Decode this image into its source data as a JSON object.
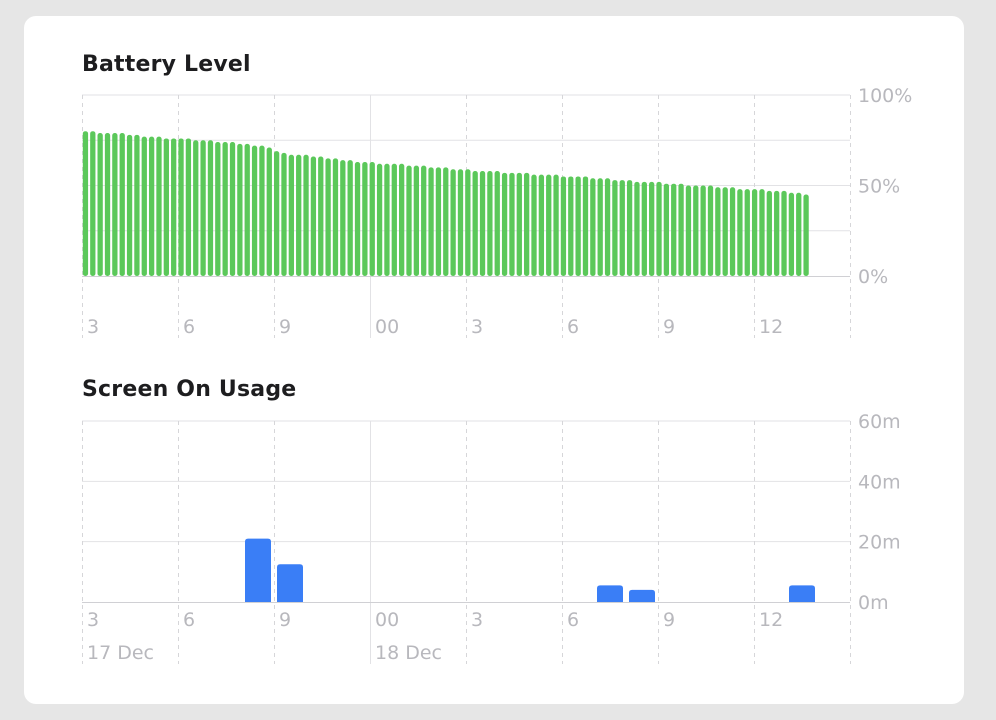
{
  "chart_data": [
    {
      "type": "bar",
      "title": "Battery Level",
      "x_tick_labels": [
        "3",
        "6",
        "9",
        "00",
        "3",
        "6",
        "9",
        "12"
      ],
      "y_tick_labels": [
        "100%",
        "50%",
        "0%"
      ],
      "ylim": [
        0,
        100
      ],
      "grid": true,
      "values": [
        80,
        80,
        79,
        79,
        79,
        79,
        78,
        78,
        77,
        77,
        77,
        76,
        76,
        76,
        76,
        75,
        75,
        75,
        74,
        74,
        74,
        73,
        73,
        72,
        72,
        71,
        69,
        68,
        67,
        67,
        67,
        66,
        66,
        65,
        65,
        64,
        64,
        63,
        63,
        63,
        62,
        62,
        62,
        62,
        61,
        61,
        61,
        60,
        60,
        60,
        59,
        59,
        59,
        58,
        58,
        58,
        58,
        57,
        57,
        57,
        57,
        56,
        56,
        56,
        56,
        55,
        55,
        55,
        55,
        54,
        54,
        54,
        53,
        53,
        53,
        52,
        52,
        52,
        52,
        51,
        51,
        51,
        50,
        50,
        50,
        50,
        49,
        49,
        49,
        48,
        48,
        48,
        48,
        47,
        47,
        47,
        46,
        46,
        45
      ],
      "color": "#5bc85a"
    },
    {
      "type": "bar",
      "title": "Screen On Usage",
      "x_tick_labels": [
        "3",
        "6",
        "9",
        "00",
        "3",
        "6",
        "9",
        "12"
      ],
      "date_labels": [
        "17 Dec",
        "18 Dec"
      ],
      "y_tick_labels": [
        "60m",
        "40m",
        "20m",
        "0m"
      ],
      "ylim": [
        0,
        60
      ],
      "grid": true,
      "unit": "minutes",
      "bars": [
        {
          "hour_offset": 5,
          "value": 21
        },
        {
          "hour_offset": 6,
          "value": 12.5
        },
        {
          "hour_offset": 16,
          "value": 5.5
        },
        {
          "hour_offset": 17,
          "value": 4
        },
        {
          "hour_offset": 22,
          "value": 5.5
        }
      ],
      "color": "#3a7ef6"
    }
  ]
}
